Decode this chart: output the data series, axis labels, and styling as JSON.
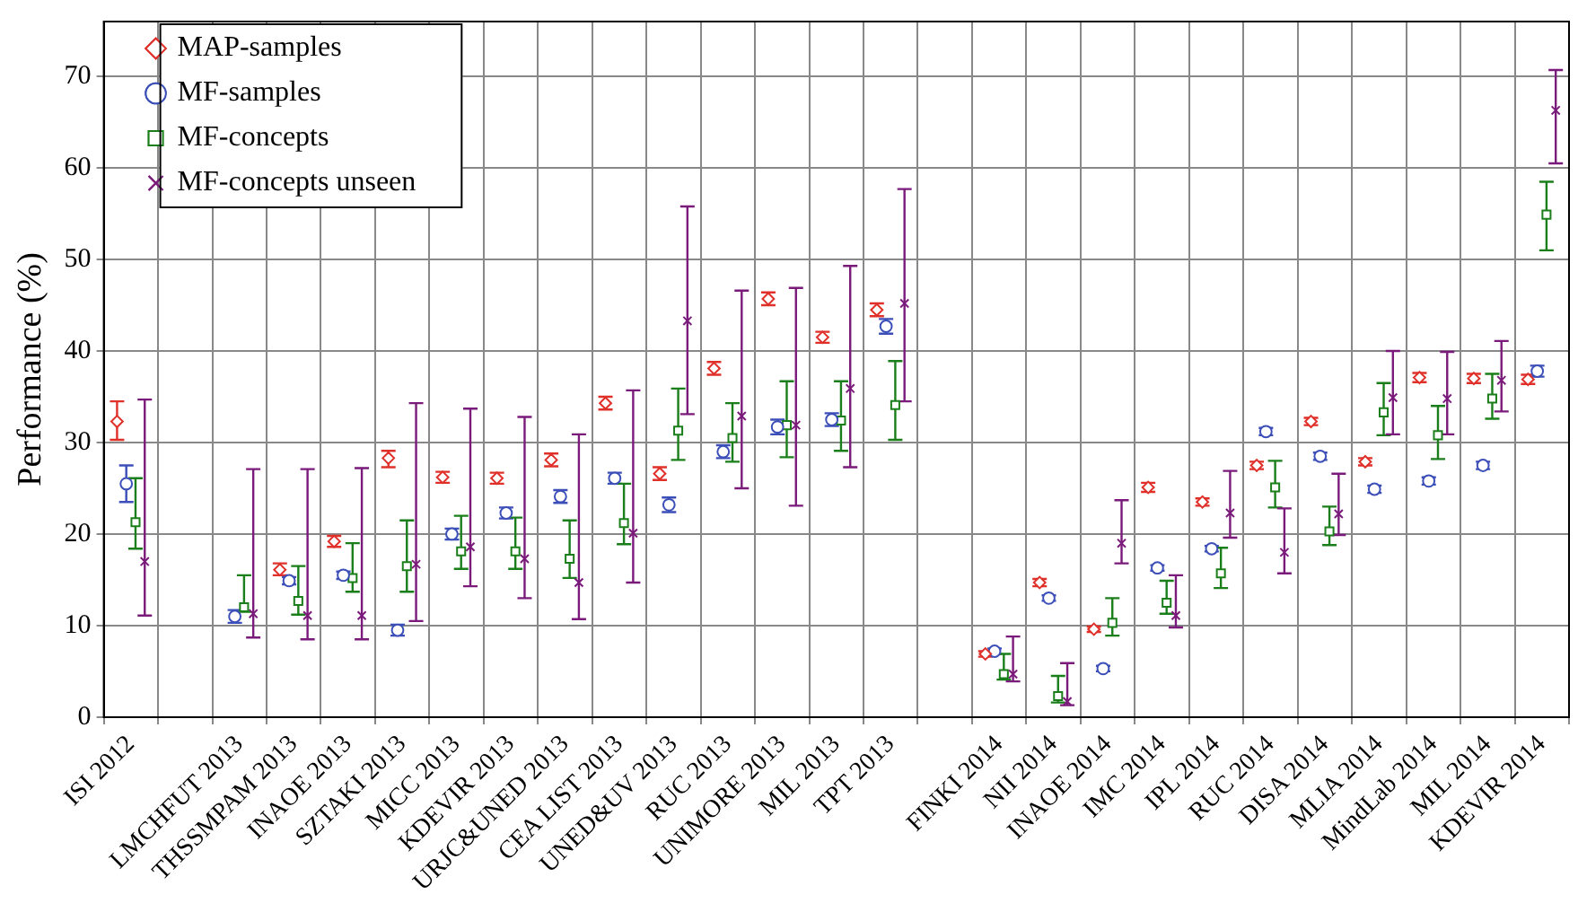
{
  "chart_data": {
    "type": "scatter",
    "ylabel": "Performance (%)",
    "categories": [
      "ISI 2012",
      null,
      "LMCHFUT 2013",
      "THSSMPAM 2013",
      "INAOE 2013",
      "SZTAKI 2013",
      "MICC 2013",
      "KDEVIR 2013",
      "URJC&UNED 2013",
      "CEA LIST 2013",
      "UNED&UV 2013",
      "RUC 2013",
      "UNIMORE 2013",
      "MIL 2013",
      "TPT 2013",
      null,
      "FINKI 2014",
      "NII 2014",
      "INAOE 2014",
      "IMC 2014",
      "IPL 2014",
      "RUC 2014",
      "DISA 2014",
      "MLIA 2014",
      "MindLab 2014",
      "MIL 2014",
      "KDEVIR 2014"
    ],
    "ylim": [
      0,
      76
    ],
    "yticks": [
      0,
      10,
      20,
      30,
      40,
      50,
      60,
      70
    ],
    "grid": true,
    "legend": "top left",
    "series": [
      {
        "name": "MAP-samples",
        "color": "#e0302a",
        "marker": "diamond",
        "values": [
          32.3,
          null,
          null,
          16.1,
          19.2,
          28.3,
          26.2,
          26.1,
          28.1,
          34.3,
          26.6,
          38.1,
          45.7,
          41.5,
          44.5,
          null,
          6.9,
          14.7,
          9.6,
          25.1,
          23.5,
          27.5,
          32.3,
          27.9,
          37.1,
          37,
          36.9
        ],
        "errors": [
          [
            30.3,
            34.5
          ],
          null,
          null,
          [
            15.5,
            16.8
          ],
          [
            18.6,
            19.8
          ],
          [
            27.3,
            29.1
          ],
          [
            25.6,
            26.8
          ],
          [
            25.5,
            26.7
          ],
          [
            27.4,
            28.8
          ],
          [
            33.6,
            35
          ],
          [
            25.9,
            27.3
          ],
          [
            37.4,
            38.8
          ],
          [
            45,
            46.4
          ],
          [
            40.9,
            42.1
          ],
          [
            43.8,
            45.2
          ],
          null,
          [
            6.6,
            7.2
          ],
          [
            14.3,
            15.1
          ],
          [
            9.3,
            9.9
          ],
          [
            24.6,
            25.6
          ],
          [
            23.1,
            23.9
          ],
          [
            27.1,
            27.9
          ],
          [
            31.9,
            32.7
          ],
          [
            27.5,
            28.3
          ],
          [
            36.6,
            37.6
          ],
          [
            36.5,
            37.5
          ],
          [
            36.4,
            37.4
          ]
        ]
      },
      {
        "name": "MF-samples",
        "color": "#3c4fb8",
        "marker": "circle",
        "values": [
          25.5,
          null,
          11,
          14.9,
          15.5,
          9.5,
          20,
          22.3,
          24.1,
          26.1,
          23.2,
          29,
          31.7,
          32.5,
          42.7,
          null,
          7.2,
          13,
          5.3,
          16.3,
          18.4,
          31.2,
          28.5,
          24.9,
          25.8,
          27.5,
          37.8
        ],
        "errors": [
          [
            23.5,
            27.5
          ],
          null,
          [
            10.3,
            11.7
          ],
          [
            14.5,
            15.3
          ],
          [
            15.1,
            15.9
          ],
          [
            8.9,
            10.1
          ],
          [
            19.4,
            20.6
          ],
          [
            21.7,
            22.9
          ],
          [
            23.4,
            24.8
          ],
          [
            25.5,
            26.7
          ],
          [
            22.4,
            24
          ],
          [
            28.3,
            29.7
          ],
          [
            30.9,
            32.5
          ],
          [
            31.8,
            33.2
          ],
          [
            41.9,
            43.5
          ],
          null,
          [
            6.9,
            7.5
          ],
          [
            12.7,
            13.3
          ],
          [
            5,
            5.6
          ],
          [
            16,
            16.6
          ],
          [
            18.1,
            18.7
          ],
          [
            30.8,
            31.6
          ],
          [
            28.1,
            28.9
          ],
          [
            24.5,
            25.3
          ],
          [
            25.4,
            26.2
          ],
          [
            27.1,
            27.9
          ],
          [
            37.2,
            38.4
          ]
        ]
      },
      {
        "name": "MF-concepts",
        "color": "#1a7f1a",
        "marker": "square",
        "values": [
          21.3,
          null,
          12,
          12.7,
          15.2,
          16.5,
          18.1,
          18.1,
          17.3,
          21.2,
          31.3,
          30.5,
          31.9,
          32.4,
          34.1,
          null,
          4.7,
          2.3,
          10.3,
          12.5,
          15.7,
          25.1,
          20.3,
          33.3,
          30.8,
          34.8,
          54.9
        ],
        "errors": [
          [
            18.4,
            26.1
          ],
          null,
          [
            11.5,
            15.5
          ],
          [
            11.2,
            16.5
          ],
          [
            13.7,
            19
          ],
          [
            13.7,
            21.5
          ],
          [
            16.2,
            22
          ],
          [
            16.2,
            21.8
          ],
          [
            15.2,
            21.5
          ],
          [
            18.9,
            25.5
          ],
          [
            28.1,
            35.9
          ],
          [
            27.9,
            34.3
          ],
          [
            28.4,
            36.7
          ],
          [
            29.1,
            36.7
          ],
          [
            30.3,
            38.9
          ],
          null,
          [
            4.1,
            6.9
          ],
          [
            1.6,
            4.5
          ],
          [
            8.9,
            13
          ],
          [
            11.3,
            14.9
          ],
          [
            14.1,
            18.5
          ],
          [
            22.9,
            28
          ],
          [
            18.8,
            23
          ],
          [
            30.8,
            36.5
          ],
          [
            28.2,
            34
          ],
          [
            32.6,
            37.5
          ],
          [
            51,
            58.5
          ]
        ]
      },
      {
        "name": "MF-concepts unseen",
        "color": "#7a1a7a",
        "marker": "cross",
        "values": [
          17,
          null,
          11.3,
          11.1,
          11.1,
          16.7,
          18.6,
          17.3,
          14.7,
          20.1,
          43.3,
          32.9,
          31.9,
          35.9,
          45.2,
          null,
          4.7,
          1.7,
          19,
          11.1,
          22.3,
          18,
          22.2,
          34.9,
          34.8,
          36.8,
          66.3
        ],
        "errors": [
          [
            11.1,
            34.7
          ],
          null,
          [
            8.7,
            27.1
          ],
          [
            8.5,
            27.1
          ],
          [
            8.5,
            27.2
          ],
          [
            10.5,
            34.3
          ],
          [
            14.3,
            33.7
          ],
          [
            13,
            32.8
          ],
          [
            10.7,
            30.9
          ],
          [
            14.7,
            35.7
          ],
          [
            33.1,
            55.8
          ],
          [
            25,
            46.6
          ],
          [
            23.1,
            46.9
          ],
          [
            27.3,
            49.3
          ],
          [
            34.5,
            57.7
          ],
          null,
          [
            3.9,
            8.8
          ],
          [
            1.3,
            5.9
          ],
          [
            16.8,
            23.7
          ],
          [
            9.8,
            15.5
          ],
          [
            19.6,
            26.9
          ],
          [
            15.7,
            22.8
          ],
          [
            19.9,
            26.6
          ],
          [
            30.9,
            40
          ],
          [
            30.9,
            39.9
          ],
          [
            33.4,
            41.1
          ],
          [
            60.5,
            70.7
          ]
        ]
      }
    ]
  }
}
